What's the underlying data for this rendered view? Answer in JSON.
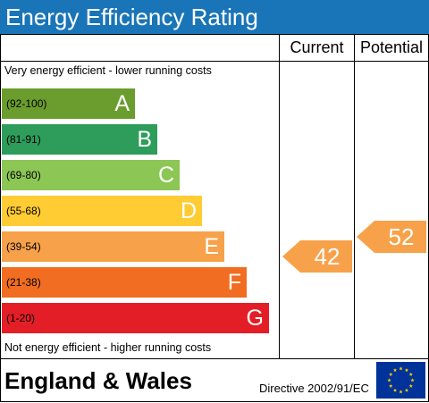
{
  "title": "Energy Efficiency Rating",
  "columns": {
    "current": "Current",
    "potential": "Potential"
  },
  "top_note": "Very energy efficient - lower running costs",
  "bottom_note": "Not energy efficient - higher running costs",
  "bands": [
    {
      "range": "(92-100)",
      "letter": "A",
      "color": "#6a9d2d"
    },
    {
      "range": "(81-91)",
      "letter": "B",
      "color": "#2e9c5a"
    },
    {
      "range": "(69-80)",
      "letter": "C",
      "color": "#8cc654"
    },
    {
      "range": "(55-68)",
      "letter": "D",
      "color": "#ffcc33"
    },
    {
      "range": "(39-54)",
      "letter": "E",
      "color": "#f7a24a"
    },
    {
      "range": "(21-38)",
      "letter": "F",
      "color": "#f06d22"
    },
    {
      "range": "(1-20)",
      "letter": "G",
      "color": "#e41e26"
    }
  ],
  "ratings": {
    "current": {
      "value": "42",
      "band": "E",
      "color": "#f7a24a"
    },
    "potential": {
      "value": "52",
      "band": "E",
      "color": "#f7a24a"
    }
  },
  "footer": {
    "region": "England & Wales",
    "directive": "Directive 2002/91/EC"
  },
  "colors": {
    "title_bar": "#1a75b8",
    "eu_flag_blue": "#003399",
    "eu_flag_stars": "#ffcc00"
  }
}
